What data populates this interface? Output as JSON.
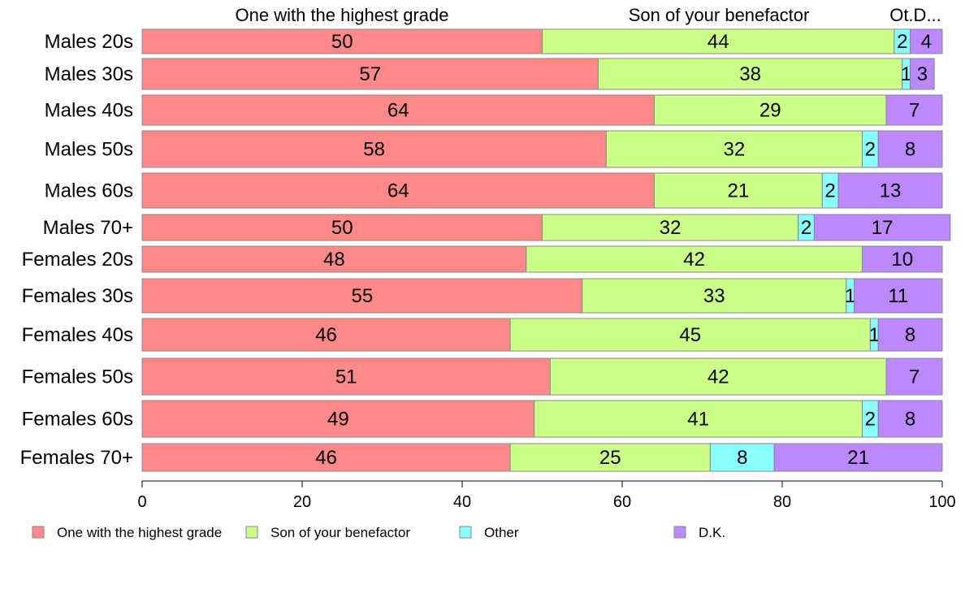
{
  "chart_data": {
    "type": "bar",
    "orientation": "horizontal",
    "stacked": true,
    "categories": [
      "Males 20s",
      "Males 30s",
      "Males 40s",
      "Males 50s",
      "Males 60s",
      "Males 70+",
      "Females 20s",
      "Females 30s",
      "Females 40s",
      "Females 50s",
      "Females 60s",
      "Females 70+"
    ],
    "series": [
      {
        "name": "One with the highest grade",
        "color": "#ff8888",
        "values": [
          50,
          57,
          64,
          58,
          64,
          50,
          48,
          55,
          46,
          51,
          49,
          46
        ]
      },
      {
        "name": "Son of your benefactor",
        "color": "#ccff88",
        "values": [
          44,
          38,
          29,
          32,
          21,
          32,
          42,
          33,
          45,
          42,
          41,
          25
        ]
      },
      {
        "name": "Other",
        "color": "#88ffff",
        "values": [
          2,
          1,
          0,
          2,
          2,
          2,
          0,
          1,
          1,
          0,
          2,
          8
        ]
      },
      {
        "name": "D.K.",
        "color": "#bb88ff",
        "values": [
          4,
          3,
          7,
          8,
          13,
          17,
          10,
          11,
          8,
          7,
          8,
          21
        ]
      }
    ],
    "top_labels": [
      "One with the highest grade",
      "Son of your benefactor",
      "Ot.D..."
    ],
    "xlim": [
      0,
      100
    ],
    "xticks": [
      0,
      20,
      40,
      60,
      80,
      100
    ],
    "legend_position": "bottom",
    "grid": false
  }
}
